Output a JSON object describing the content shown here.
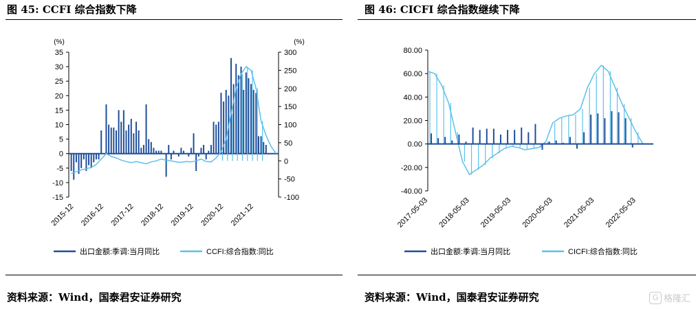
{
  "panels": {
    "left": {
      "title": "图 45: CCFI 综合指数下降",
      "source": "资料来源：Wind，国泰君安证券研究"
    },
    "right": {
      "title": "图 46: CICFI 综合指数继续下降",
      "source": "资料来源：Wind，国泰君安证券研究"
    }
  },
  "watermark": "格隆汇",
  "chart_data": [
    {
      "type": "line",
      "left_axis_unit": "(%)",
      "right_axis_unit": "(%)",
      "ylim_left": [
        -15,
        35
      ],
      "ylim_right": [
        -100,
        300
      ],
      "yticks_left": [
        -15,
        -10,
        -5,
        0,
        5,
        10,
        15,
        20,
        25,
        30,
        35
      ],
      "yticks_right": [
        -100,
        -50,
        0,
        50,
        100,
        150,
        200,
        250,
        300
      ],
      "x_range": [
        "2015-10",
        "2022-10"
      ],
      "xtick_labels": [
        "2015-12",
        "2016-12",
        "2017-12",
        "2018-12",
        "2019-12",
        "2020-12",
        "2021-12"
      ],
      "legend_position": "bottom",
      "series": [
        {
          "name": "出口金额:季调:当月同比",
          "axis": "left",
          "color": "#1f4e9a",
          "style": "spikes",
          "x": [
            "2015-11",
            "2015-12",
            "2016-01",
            "2016-02",
            "2016-03",
            "2016-04",
            "2016-05",
            "2016-06",
            "2016-07",
            "2016-08",
            "2016-09",
            "2016-10",
            "2016-11",
            "2016-12",
            "2017-01",
            "2017-02",
            "2017-03",
            "2017-04",
            "2017-05",
            "2017-06",
            "2017-07",
            "2017-08",
            "2017-09",
            "2017-10",
            "2017-11",
            "2017-12",
            "2018-01",
            "2018-02",
            "2018-03",
            "2018-04",
            "2018-05",
            "2018-06",
            "2018-07",
            "2018-08",
            "2018-09",
            "2018-10",
            "2018-11",
            "2018-12",
            "2019-01",
            "2019-02",
            "2019-03",
            "2019-04",
            "2019-05",
            "2019-06",
            "2019-07",
            "2019-08",
            "2019-09",
            "2019-10",
            "2019-11",
            "2019-12",
            "2020-01",
            "2020-02",
            "2020-03",
            "2020-04",
            "2020-05",
            "2020-06",
            "2020-07",
            "2020-08",
            "2020-09",
            "2020-10",
            "2020-11",
            "2020-12",
            "2021-01",
            "2021-02",
            "2021-03",
            "2021-04",
            "2021-05",
            "2021-06",
            "2021-07",
            "2021-08",
            "2021-09",
            "2021-10",
            "2021-11",
            "2021-12",
            "2022-01",
            "2022-02",
            "2022-03",
            "2022-04",
            "2022-05"
          ],
          "values": [
            -6,
            -9,
            -3,
            -7,
            -5,
            -2,
            -6,
            -4,
            -5,
            -3,
            -2,
            -2,
            8,
            0,
            17,
            10,
            9,
            9,
            8,
            15,
            11,
            15,
            8,
            10,
            12,
            7,
            11,
            8,
            2,
            3,
            17,
            5,
            4,
            2,
            1,
            1,
            1,
            0,
            -8,
            3,
            -2,
            1,
            0,
            -1,
            2,
            1,
            0,
            -1,
            2,
            7,
            -6,
            -1,
            2,
            3,
            -2,
            1,
            3,
            11,
            10,
            11,
            21,
            18,
            22,
            20,
            33,
            24,
            31,
            27,
            30,
            22,
            28,
            26,
            24,
            22,
            21,
            6,
            6,
            4,
            3
          ]
        },
        {
          "name": "CCFI:综合指数:同比",
          "axis": "right",
          "color": "#5bc0eb",
          "style": "line",
          "x": [
            "2015-11",
            "2016-01",
            "2016-03",
            "2016-05",
            "2016-07",
            "2016-09",
            "2016-11",
            "2017-01",
            "2017-03",
            "2017-05",
            "2017-07",
            "2017-09",
            "2017-11",
            "2018-01",
            "2018-03",
            "2018-05",
            "2018-07",
            "2018-09",
            "2018-11",
            "2019-01",
            "2019-03",
            "2019-05",
            "2019-07",
            "2019-09",
            "2019-11",
            "2020-01",
            "2020-03",
            "2020-05",
            "2020-07",
            "2020-09",
            "2020-11",
            "2021-01",
            "2021-03",
            "2021-05",
            "2021-07",
            "2021-09",
            "2021-11",
            "2022-01",
            "2022-03",
            "2022-05",
            "2022-07",
            "2022-09"
          ],
          "values": [
            -35,
            -30,
            -25,
            -22,
            -18,
            -10,
            5,
            20,
            12,
            8,
            2,
            -2,
            -5,
            -2,
            -5,
            -8,
            -3,
            0,
            5,
            2,
            0,
            -3,
            -4,
            -2,
            -3,
            0,
            5,
            -2,
            -3,
            8,
            25,
            60,
            130,
            200,
            240,
            260,
            250,
            200,
            110,
            70,
            40,
            20
          ]
        }
      ]
    },
    {
      "type": "line",
      "ylim": [
        -40,
        80
      ],
      "yticks": [
        "-40.00",
        "-20.00",
        "0.00",
        "20.00",
        "40.00",
        "60.00",
        "80.00"
      ],
      "x_range": [
        "2017-05",
        "2022-10"
      ],
      "xtick_labels": [
        "2017-05-03",
        "2018-05-03",
        "2019-05-03",
        "2020-05-03",
        "2021-05-03",
        "2022-05-03"
      ],
      "legend_position": "bottom",
      "series": [
        {
          "name": "出口金额:季调:当月同比",
          "color": "#1f4e9a",
          "style": "spikes",
          "x": [
            "2017-06",
            "2017-08",
            "2017-10",
            "2017-12",
            "2018-02",
            "2018-04",
            "2018-06",
            "2018-08",
            "2018-10",
            "2018-12",
            "2019-02",
            "2019-04",
            "2019-06",
            "2019-08",
            "2019-10",
            "2019-12",
            "2020-02",
            "2020-04",
            "2020-06",
            "2020-08",
            "2020-10",
            "2020-12",
            "2021-02",
            "2021-04",
            "2021-06",
            "2021-08",
            "2021-10",
            "2021-12",
            "2022-02",
            "2022-04"
          ],
          "values": [
            9,
            5,
            6,
            3,
            8,
            2,
            14,
            12,
            13,
            13,
            8,
            12,
            12,
            14,
            10,
            17,
            -5,
            2,
            3,
            1,
            6,
            -4,
            10,
            25,
            26,
            22,
            28,
            27,
            22,
            -3
          ]
        },
        {
          "name": "CICFI:综合指数:同比",
          "color": "#5bc0eb",
          "style": "oscillating-line",
          "x": [
            "2017-05",
            "2017-07",
            "2017-09",
            "2017-11",
            "2018-01",
            "2018-03",
            "2018-05",
            "2018-07",
            "2018-09",
            "2018-11",
            "2019-01",
            "2019-03",
            "2019-05",
            "2019-07",
            "2019-09",
            "2019-11",
            "2020-01",
            "2020-03",
            "2020-05",
            "2020-07",
            "2020-09",
            "2020-11",
            "2021-01",
            "2021-03",
            "2021-05",
            "2021-07",
            "2021-09",
            "2021-11",
            "2022-01",
            "2022-03",
            "2022-05",
            "2022-07"
          ],
          "values": [
            62,
            60,
            50,
            35,
            10,
            -15,
            -26,
            -22,
            -18,
            -12,
            -8,
            -4,
            -2,
            -3,
            -5,
            -4,
            -3,
            2,
            18,
            22,
            24,
            25,
            30,
            48,
            60,
            67,
            62,
            48,
            34,
            22,
            10,
            0
          ]
        }
      ]
    }
  ]
}
